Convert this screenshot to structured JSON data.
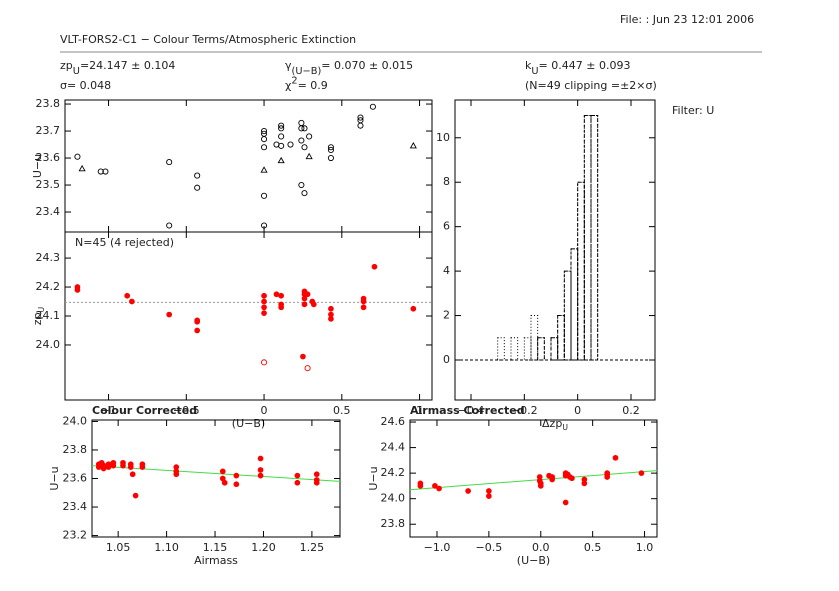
{
  "header": {
    "file_stamp": "File:  : Jun 23 12:01 2006",
    "title": "VLT-FORS2-C1 − Colour Terms/Atmospheric Extinction",
    "filter": "Filter: U",
    "params": [
      {
        "label": "zp",
        "sub": "U",
        "text": "=24.147 ± 0.104"
      },
      {
        "label": "γ",
        "sub": "(U−B)",
        "text": "= 0.070 ± 0.015"
      },
      {
        "label": "k",
        "sub": "U",
        "text": "= 0.447 ± 0.093"
      },
      {
        "label": "σ= 0.048"
      },
      {
        "label": "χ",
        "sup": "2",
        "text": "=   0.9"
      },
      {
        "label": "(N=49 clipping =±2×σ)"
      }
    ]
  },
  "chart_data": [
    {
      "type": "scatter",
      "ylabel": "U−u",
      "xlim": [
        -1.28,
        1.08
      ],
      "ylim": [
        23.326,
        23.815
      ],
      "yticks": [
        23.4,
        23.5,
        23.6,
        23.7,
        23.8
      ],
      "series": [
        {
          "marker": "o",
          "filled": false,
          "color": "#000000",
          "x": [
            -1.2,
            -1.05,
            -1.02,
            -0.61,
            -0.43,
            -0.43,
            -0.61,
            0.0,
            0.0,
            0.0,
            0.0,
            0.0,
            0.0,
            0.08,
            0.11,
            0.11,
            0.11,
            0.11,
            0.17,
            0.24,
            0.24,
            0.24,
            0.26,
            0.26,
            0.24,
            0.26,
            0.29,
            0.43,
            0.43,
            0.43,
            0.62,
            0.62,
            0.62,
            0.7
          ],
          "values": [
            23.605,
            23.55,
            23.55,
            23.585,
            23.535,
            23.49,
            23.35,
            23.7,
            23.69,
            23.67,
            23.64,
            23.46,
            23.35,
            23.65,
            23.72,
            23.71,
            23.68,
            23.645,
            23.65,
            23.73,
            23.71,
            23.665,
            23.71,
            23.64,
            23.5,
            23.47,
            23.68,
            23.64,
            23.63,
            23.6,
            23.75,
            23.74,
            23.72,
            23.79
          ]
        },
        {
          "marker": "^",
          "filled": false,
          "color": "#000000",
          "x": [
            -1.17,
            0.0,
            0.11,
            0.29,
            0.96
          ],
          "values": [
            23.56,
            23.555,
            23.59,
            23.605,
            23.645
          ]
        }
      ]
    },
    {
      "type": "scatter",
      "ylabel": {
        "label": "zp",
        "sub": "U"
      },
      "xlabel": "(U−B)",
      "annotation": "N=45 (4 rejected)",
      "hline": 24.147,
      "xlim": [
        -1.28,
        1.08
      ],
      "ylim": [
        23.81,
        24.39
      ],
      "xticks": [
        {
          "value": -1,
          "label": "−1"
        },
        {
          "value": -0.5,
          "label": "−0.5"
        },
        0,
        0.5,
        1
      ],
      "yticks": [
        {
          "value": 24.0,
          "label": "24.0"
        },
        24.1,
        24.2,
        24.3
      ],
      "series": [
        {
          "marker": "o",
          "filled": true,
          "color": "#ff0000",
          "x": [
            -1.2,
            -1.2,
            -0.88,
            -0.85,
            -0.61,
            -0.43,
            -0.43,
            -0.43,
            0.0,
            0.0,
            0.0,
            0.0,
            0.08,
            0.11,
            0.11,
            0.11,
            0.26,
            0.26,
            0.26,
            0.26,
            0.28,
            0.31,
            0.32,
            0.43,
            0.43,
            0.43,
            0.64,
            0.64,
            0.64,
            0.71,
            0.96,
            0.25
          ],
          "values": [
            24.2,
            24.19,
            24.17,
            24.15,
            24.105,
            24.085,
            24.08,
            24.05,
            24.17,
            24.15,
            24.13,
            24.11,
            24.175,
            24.17,
            24.14,
            24.13,
            24.185,
            24.175,
            24.16,
            24.14,
            24.175,
            24.15,
            24.14,
            24.125,
            24.105,
            24.09,
            24.16,
            24.15,
            24.13,
            24.27,
            24.125,
            23.96
          ]
        },
        {
          "marker": "o",
          "filled": false,
          "color": "#ff0000",
          "x": [
            0.0,
            0.28
          ],
          "values": [
            23.94,
            23.92
          ]
        }
      ]
    },
    {
      "type": "histogram",
      "xlabel": {
        "label": "Δzp",
        "sub": "U"
      },
      "xlim": [
        -0.46,
        0.29
      ],
      "ylim": [
        -1.8,
        11.7
      ],
      "xticks": [
        {
          "value": -0.4,
          "label": "−0.4"
        },
        {
          "value": -0.2,
          "label": "−0.2"
        },
        0,
        0.2
      ],
      "yticks": [
        0,
        2,
        4,
        6,
        8,
        10
      ],
      "bins": [
        -0.325,
        -0.3,
        -0.275,
        -0.25,
        -0.225,
        -0.2,
        -0.175,
        -0.15,
        -0.125,
        -0.1,
        -0.075,
        -0.05,
        -0.025,
        0,
        0.025,
        0.05,
        0.075,
        0.1
      ],
      "series": [
        {
          "style": "dotted",
          "color": "#000000",
          "values": [
            0,
            1,
            0,
            1,
            0,
            1,
            2,
            1,
            0,
            1,
            2,
            4,
            5,
            8,
            11,
            11,
            0
          ]
        },
        {
          "style": "dashed",
          "color": "#000000",
          "values": [
            0,
            0,
            0,
            0,
            0,
            0,
            0,
            1,
            0,
            1,
            2,
            4,
            5,
            8,
            11,
            11,
            0
          ]
        }
      ]
    },
    {
      "type": "scatter",
      "title": "Colour Corrected",
      "ylabel": "U−u",
      "xlabel": "Airmass",
      "xlim": [
        1.023,
        1.279
      ],
      "ylim": [
        23.19,
        24.01
      ],
      "xticks": [
        1.05,
        {
          "value": 1.1,
          "label": "1.10"
        },
        1.15,
        {
          "value": 1.2,
          "label": "1.20"
        },
        1.25
      ],
      "yticks": [
        23.2,
        23.4,
        23.6,
        23.8,
        {
          "value": 24.0,
          "label": "24.0"
        }
      ],
      "fit": {
        "color": "#44dd44",
        "x": [
          1.023,
          1.279
        ],
        "values": [
          23.69,
          23.58
        ]
      },
      "series": [
        {
          "marker": "o",
          "filled": true,
          "color": "#ff0000",
          "x": [
            1.03,
            1.03,
            1.033,
            1.035,
            1.035,
            1.04,
            1.04,
            1.045,
            1.045,
            1.055,
            1.055,
            1.063,
            1.063,
            1.065,
            1.068,
            1.075,
            1.075,
            1.11,
            1.11,
            1.11,
            1.158,
            1.158,
            1.16,
            1.172,
            1.172,
            1.197,
            1.197,
            1.197,
            1.235,
            1.235,
            1.255,
            1.255,
            1.255
          ],
          "values": [
            23.7,
            23.68,
            23.71,
            23.69,
            23.67,
            23.7,
            23.68,
            23.71,
            23.69,
            23.71,
            23.69,
            23.7,
            23.68,
            23.63,
            23.48,
            23.7,
            23.68,
            23.68,
            23.65,
            23.63,
            23.65,
            23.6,
            23.57,
            23.62,
            23.56,
            23.74,
            23.66,
            23.62,
            23.62,
            23.57,
            23.63,
            23.59,
            23.57
          ]
        }
      ]
    },
    {
      "type": "scatter",
      "title": "Airmass Corrected",
      "ylabel": "U−u",
      "xlabel": "(U−B)",
      "xlim": [
        -1.26,
        1.12
      ],
      "ylim": [
        23.7,
        24.616
      ],
      "xticks": [
        {
          "value": -1,
          "label": "−1.0"
        },
        {
          "value": -0.5,
          "label": "−0.5"
        },
        {
          "value": 0,
          "label": "0.0"
        },
        0.5,
        {
          "value": 1,
          "label": "1.0"
        }
      ],
      "yticks": [
        23.8,
        {
          "value": 24.0,
          "label": "24.0"
        },
        24.2,
        24.4,
        24.6
      ],
      "fit": {
        "color": "#44dd44",
        "x": [
          -1.26,
          1.12
        ],
        "values": [
          24.07,
          24.22
        ]
      },
      "series": [
        {
          "marker": "o",
          "filled": true,
          "color": "#ff0000",
          "x": [
            -1.16,
            -1.16,
            -1.02,
            -0.98,
            -0.7,
            -0.5,
            -0.5,
            -0.01,
            -0.01,
            0.0,
            0.0,
            0.08,
            0.11,
            0.11,
            0.24,
            0.24,
            0.26,
            0.28,
            0.3,
            0.42,
            0.42,
            0.64,
            0.64,
            0.64,
            0.72,
            0.97,
            0.24
          ],
          "values": [
            24.12,
            24.1,
            24.1,
            24.08,
            24.06,
            24.06,
            24.02,
            24.17,
            24.14,
            24.12,
            24.1,
            24.18,
            24.17,
            24.15,
            24.2,
            24.18,
            24.19,
            24.17,
            24.16,
            24.15,
            24.12,
            24.2,
            24.19,
            24.17,
            24.32,
            24.2,
            23.97
          ]
        }
      ]
    }
  ]
}
